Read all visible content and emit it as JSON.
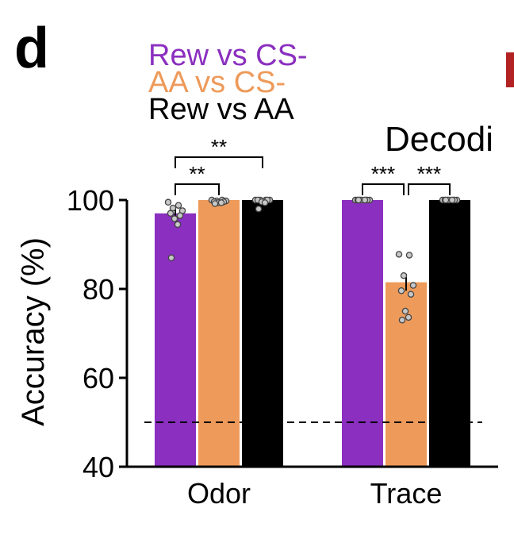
{
  "panel_label": "d",
  "partial_title": "Decodi",
  "chart_data": {
    "type": "bar",
    "title": "Decodi",
    "xlabel": "",
    "ylabel": "Accuracy (%)",
    "ylim": [
      40,
      100
    ],
    "yticks": [
      40,
      60,
      80,
      100
    ],
    "categories": [
      "Odor",
      "Trace"
    ],
    "chance_level": 50,
    "series": [
      {
        "name": "Rew vs CS-",
        "color": "#8a2fbf",
        "values": [
          97,
          100
        ],
        "sem": [
          1.2,
          0
        ],
        "points": [
          [
            99.5,
            98.8,
            98.2,
            97.6,
            97.0,
            96.5,
            95.8,
            94.5,
            87.0
          ],
          [
            100,
            100,
            100,
            100,
            100,
            100,
            100,
            100,
            100
          ]
        ]
      },
      {
        "name": "AA vs CS-",
        "color": "#ee9a5a",
        "values": [
          100,
          81.5
        ],
        "sem": [
          0,
          1.9
        ],
        "points": [
          [
            100,
            100,
            99.8,
            99.8,
            99.6,
            99.6,
            99.4,
            99.4,
            99.2
          ],
          [
            87.8,
            87.6,
            83.0,
            80.8,
            79.6,
            78.8,
            75.0,
            73.6,
            73.0
          ]
        ]
      },
      {
        "name": "Rew vs AA",
        "color": "#000000",
        "values": [
          100,
          100
        ],
        "sem": [
          0,
          0
        ],
        "points": [
          [
            100,
            100,
            100,
            100,
            100,
            100,
            99.6,
            99.4,
            98.0
          ],
          [
            100,
            100,
            100,
            100,
            100,
            100,
            100,
            100,
            100
          ]
        ]
      }
    ],
    "significance": [
      {
        "category": "Odor",
        "from": 0,
        "to": 2,
        "label": "**",
        "level": 2
      },
      {
        "category": "Odor",
        "from": 0,
        "to": 1,
        "label": "**",
        "level": 1
      },
      {
        "category": "Trace",
        "from": 0,
        "to": 1,
        "label": "***",
        "level": 1
      },
      {
        "category": "Trace",
        "from": 1,
        "to": 2,
        "label": "***",
        "level": 1
      }
    ]
  },
  "partial_panel_color": "#b22222"
}
